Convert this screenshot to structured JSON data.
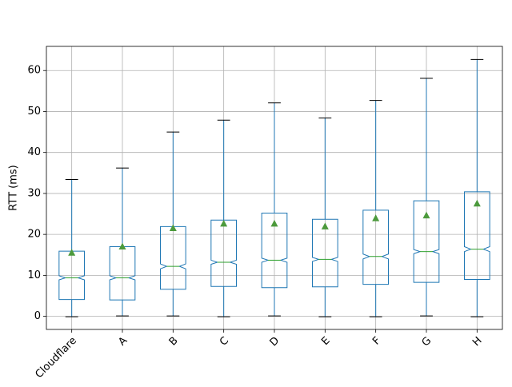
{
  "chart_data": {
    "type": "box",
    "ylabel": "RTT (ms)",
    "categories": [
      "Cloudflare",
      "A",
      "B",
      "C",
      "D",
      "E",
      "F",
      "G",
      "H"
    ],
    "whislo": [
      -0.1,
      0.1,
      0.1,
      -0.1,
      0.1,
      -0.1,
      -0.1,
      0.1,
      -0.1
    ],
    "q1": [
      4.1,
      4.0,
      6.6,
      7.3,
      7.0,
      7.2,
      7.8,
      8.3,
      9.0
    ],
    "notch_lo": [
      8.9,
      8.9,
      11.6,
      12.7,
      13.2,
      13.4,
      14.0,
      15.3,
      15.8
    ],
    "median": [
      9.4,
      9.4,
      12.2,
      13.2,
      13.7,
      13.9,
      14.6,
      15.8,
      16.4
    ],
    "notch_hi": [
      9.9,
      9.9,
      12.8,
      13.7,
      14.2,
      14.4,
      15.2,
      16.3,
      17.0
    ],
    "q3": [
      15.9,
      17.0,
      21.9,
      23.5,
      25.2,
      23.7,
      25.9,
      28.2,
      30.4
    ],
    "whishi": [
      33.4,
      36.2,
      45.0,
      47.9,
      52.1,
      48.4,
      52.7,
      58.1,
      62.7
    ],
    "mean": [
      15.5,
      17.0,
      21.5,
      22.6,
      22.6,
      21.9,
      23.9,
      24.6,
      27.5
    ],
    "ylim": [
      -3.2,
      65.9
    ],
    "yticks": [
      0,
      10,
      20,
      30,
      40,
      50,
      60
    ],
    "grid": true,
    "box_color": "#1f77b4",
    "median_color": "#2ca02c",
    "cap_color": "#000000",
    "mean_color": "#4c9a3c"
  }
}
